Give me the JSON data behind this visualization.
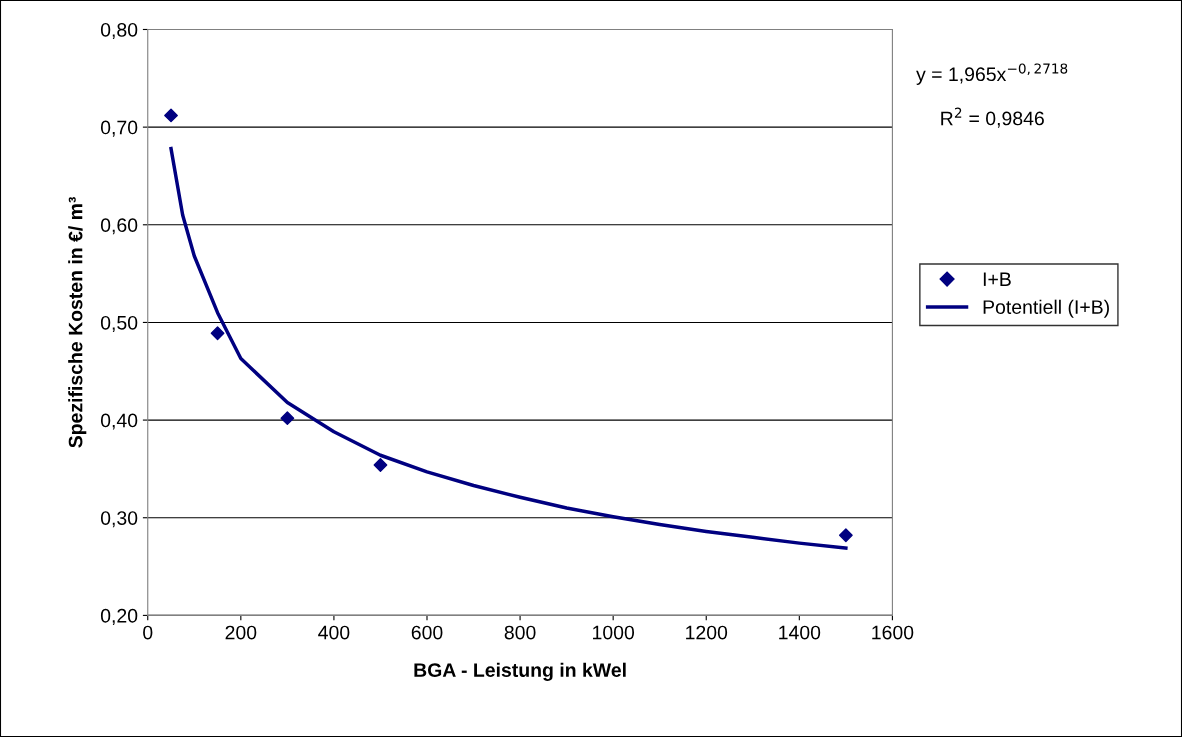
{
  "chart_data": {
    "type": "scatter",
    "xlabel": "BGA - Leistung in kWel",
    "ylabel": "Spezifische Kosten in €/ m³",
    "xlim": [
      0,
      1600
    ],
    "xticks": [
      0,
      200,
      400,
      600,
      800,
      1000,
      1200,
      1400,
      1600
    ],
    "ylim": [
      0.2,
      0.8
    ],
    "yticks": [
      {
        "value": 0.2,
        "label": "0,20"
      },
      {
        "value": 0.3,
        "label": "0,30"
      },
      {
        "value": 0.4,
        "label": "0,40"
      },
      {
        "value": 0.5,
        "label": "0,50"
      },
      {
        "value": 0.6,
        "label": "0,60"
      },
      {
        "value": 0.7,
        "label": "0,70"
      },
      {
        "value": 0.8,
        "label": "0,80"
      }
    ],
    "grid": "y",
    "legend": "right",
    "series": [
      {
        "name": "I+B",
        "marker": "diamond",
        "color": "#000080",
        "x": [
          50,
          150,
          300,
          500,
          1500
        ],
        "values": [
          0.712,
          0.489,
          0.402,
          0.354,
          0.282
        ]
      },
      {
        "name": "Potentiell (I+B)",
        "type": "line",
        "color": "#000080",
        "x": [
          50,
          75,
          100,
          150,
          200,
          300,
          400,
          500,
          600,
          700,
          800,
          900,
          1000,
          1100,
          1200,
          1300,
          1400,
          1500
        ],
        "values": [
          0.678,
          0.61,
          0.568,
          0.51,
          0.463,
          0.418,
          0.388,
          0.364,
          0.347,
          0.333,
          0.321,
          0.31,
          0.301,
          0.293,
          0.286,
          0.28,
          0.274,
          0.269
        ]
      }
    ],
    "annotations": [
      "y = 1,965x$^{−0,2718}$",
      "R$^{2}$ = 0,9846"
    ]
  }
}
